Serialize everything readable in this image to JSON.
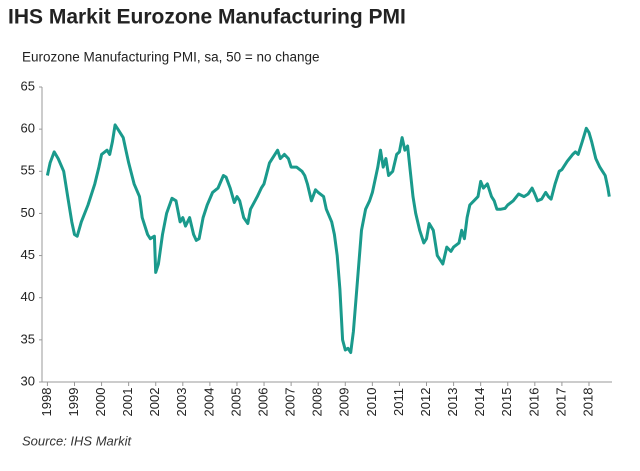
{
  "chart_data": {
    "type": "line",
    "title": "IHS Markit Eurozone Manufacturing PMI",
    "subtitle": "Eurozone Manufacturing PMI, sa, 50 = no change",
    "source": "Source: IHS Markit",
    "color": "#1a9a8c",
    "x": [
      1998.0,
      1998.1,
      1998.25,
      1998.4,
      1998.6,
      1998.75,
      1998.9,
      1999.0,
      1999.1,
      1999.25,
      1999.5,
      1999.75,
      1999.9,
      2000.0,
      2000.2,
      2000.3,
      2000.4,
      2000.5,
      2000.6,
      2000.8,
      2000.9,
      2001.0,
      2001.2,
      2001.4,
      2001.5,
      2001.7,
      2001.8,
      2001.95,
      2002.0,
      2002.1,
      2002.25,
      2002.4,
      2002.6,
      2002.75,
      2002.9,
      2003.0,
      2003.1,
      2003.25,
      2003.4,
      2003.5,
      2003.6,
      2003.75,
      2003.9,
      2004.1,
      2004.3,
      2004.5,
      2004.6,
      2004.75,
      2004.9,
      2005.0,
      2005.1,
      2005.25,
      2005.4,
      2005.5,
      2005.75,
      2005.9,
      2006.0,
      2006.2,
      2006.4,
      2006.5,
      2006.6,
      2006.75,
      2006.9,
      2007.0,
      2007.2,
      2007.4,
      2007.5,
      2007.6,
      2007.75,
      2007.9,
      2008.0,
      2008.2,
      2008.3,
      2008.5,
      2008.6,
      2008.7,
      2008.8,
      2008.9,
      2009.0,
      2009.1,
      2009.2,
      2009.3,
      2009.4,
      2009.5,
      2009.6,
      2009.75,
      2009.9,
      2010.0,
      2010.2,
      2010.3,
      2010.4,
      2010.5,
      2010.6,
      2010.75,
      2010.9,
      2011.0,
      2011.1,
      2011.2,
      2011.3,
      2011.4,
      2011.5,
      2011.6,
      2011.75,
      2011.9,
      2012.0,
      2012.1,
      2012.25,
      2012.4,
      2012.5,
      2012.6,
      2012.75,
      2012.9,
      2013.0,
      2013.2,
      2013.3,
      2013.4,
      2013.5,
      2013.6,
      2013.75,
      2013.9,
      2014.0,
      2014.1,
      2014.25,
      2014.4,
      2014.5,
      2014.6,
      2014.75,
      2014.9,
      2015.0,
      2015.2,
      2015.4,
      2015.6,
      2015.75,
      2015.9,
      2016.0,
      2016.1,
      2016.25,
      2016.4,
      2016.5,
      2016.6,
      2016.75,
      2016.9,
      2017.0,
      2017.2,
      2017.4,
      2017.5,
      2017.6,
      2017.75,
      2017.9,
      2018.0,
      2018.1,
      2018.25,
      2018.4,
      2018.5,
      2018.6,
      2018.7,
      2018.75
    ],
    "values": [
      54.5,
      56,
      57.3,
      56.5,
      55,
      52,
      49,
      47.5,
      47.3,
      49,
      51,
      53.5,
      55.5,
      57,
      57.5,
      57,
      58.5,
      60.5,
      60,
      59,
      57.5,
      56,
      53.5,
      52,
      49.5,
      47.5,
      47,
      47.3,
      43,
      44,
      47.5,
      50,
      51.8,
      51.5,
      49,
      49.5,
      48.5,
      49.5,
      47.5,
      46.8,
      47,
      49.5,
      51,
      52.5,
      53,
      54.5,
      54.3,
      53,
      51.3,
      52,
      51.5,
      49.5,
      48.8,
      50.5,
      52,
      53,
      53.5,
      56,
      57,
      57.5,
      56.5,
      57,
      56.5,
      55.5,
      55.5,
      55,
      54.5,
      53.5,
      51.5,
      52.8,
      52.5,
      52,
      50.5,
      49,
      47.5,
      45,
      41,
      35,
      33.8,
      34,
      33.5,
      36,
      40,
      44,
      48,
      50.5,
      51.5,
      52.5,
      55.5,
      57.5,
      55.5,
      56.5,
      54.5,
      55,
      57,
      57.3,
      59,
      57.5,
      58,
      55,
      52,
      50,
      48,
      46.5,
      47,
      48.8,
      48,
      45,
      44.5,
      44,
      46,
      45.5,
      46,
      46.5,
      48,
      47,
      49.5,
      51,
      51.5,
      52,
      53.8,
      53,
      53.5,
      52,
      51.5,
      50.5,
      50.5,
      50.6,
      51,
      51.5,
      52.3,
      52,
      52.3,
      53,
      52.3,
      51.5,
      51.7,
      52.5,
      52,
      51.7,
      53.5,
      55,
      55.2,
      56.2,
      57,
      57.3,
      57,
      58.5,
      60.1,
      59.6,
      58.5,
      56.5,
      55.5,
      55,
      54.5,
      53,
      52
    ],
    "xlim": [
      1997.8,
      2018.85
    ],
    "xticks": [
      1998,
      1999,
      2000,
      2001,
      2002,
      2003,
      2004,
      2005,
      2006,
      2007,
      2008,
      2009,
      2010,
      2011,
      2012,
      2013,
      2014,
      2015,
      2016,
      2017,
      2018
    ],
    "ylim": [
      30,
      65
    ],
    "yticks": [
      30,
      35,
      40,
      45,
      50,
      55,
      60,
      65
    ]
  }
}
